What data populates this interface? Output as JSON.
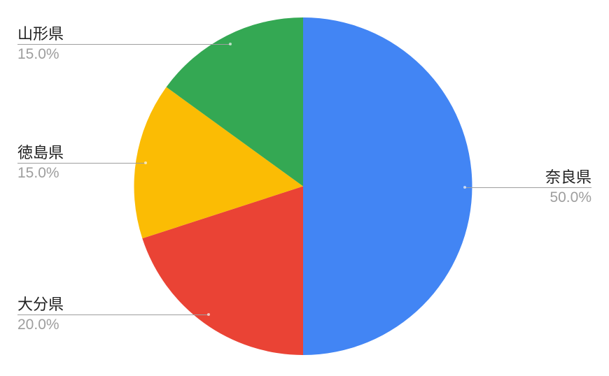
{
  "background_color": "#ffffff",
  "chart_data": {
    "type": "pie",
    "title": "",
    "start_angle": "12-oclock",
    "direction": "clockwise",
    "labels_style": "outside-callouts",
    "categories": [
      "奈良県",
      "大分県",
      "徳島県",
      "山形県"
    ],
    "values": [
      50.0,
      20.0,
      15.0,
      15.0
    ],
    "slices": [
      {
        "id": "nara",
        "label": "奈良県",
        "value": 50.0,
        "percent_text": "50.0%",
        "color": "#4285F4"
      },
      {
        "id": "oita",
        "label": "大分県",
        "value": 20.0,
        "percent_text": "20.0%",
        "color": "#EA4335"
      },
      {
        "id": "tokushima",
        "label": "徳島県",
        "value": 15.0,
        "percent_text": "15.0%",
        "color": "#FBBC04"
      },
      {
        "id": "yamagata",
        "label": "山形県",
        "value": 15.0,
        "percent_text": "15.0%",
        "color": "#34A853"
      }
    ],
    "label_text_color": "#212121",
    "percent_text_color": "#9e9e9e",
    "callout_line_color": "#9e9e9e"
  }
}
